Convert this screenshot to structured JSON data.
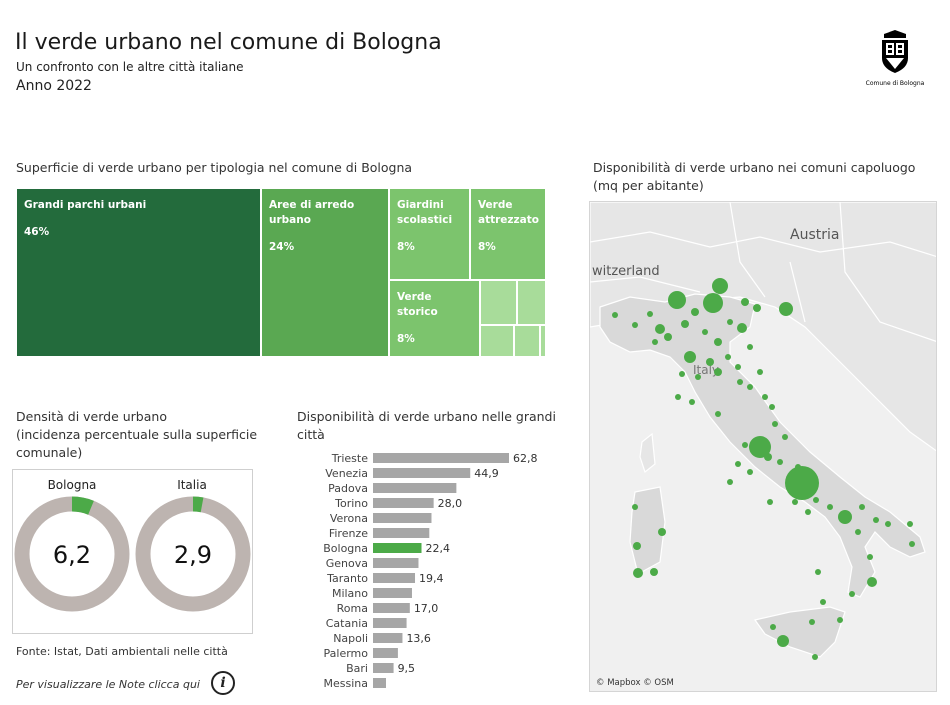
{
  "header": {
    "title": "Il verde urbano nel comune di Bologna",
    "subtitle": "Un confronto con le altre città italiane",
    "year": "Anno 2022",
    "logo_text": "Comune di Bologna"
  },
  "treemap": {
    "title": "Superficie di verde urbano per tipologia nel comune di Bologna",
    "cells": [
      {
        "label": "Grandi parchi urbani",
        "value": "46%",
        "color": "#236b3c"
      },
      {
        "label": "Aree di  arredo urbano",
        "value": "24%",
        "color": "#5aa852"
      },
      {
        "label": "Giardini scolastici",
        "value": "8%",
        "color": "#7cc46d"
      },
      {
        "label": "Verde attrezzato",
        "value": "8%",
        "color": "#7cc46d"
      },
      {
        "label": "Verde storico",
        "value": "8%",
        "color": "#7cc46d"
      }
    ]
  },
  "density": {
    "title_line1": "Densità di verde urbano",
    "title_line2": "(incidenza percentuale sulla superficie",
    "title_line3": "comunale)",
    "items": [
      {
        "name": "Bologna",
        "value": "6,2",
        "pct": 6.2
      },
      {
        "name": "Italia",
        "value": "2,9",
        "pct": 2.9
      }
    ],
    "ring_color": "#bdb4b0",
    "fill_color": "#4caa48"
  },
  "bars": {
    "title_line1": "Disponibilità di verde urbano nelle grandi",
    "title_line2": "città"
  },
  "map": {
    "title_line1": "Disponibilità di verde urbano nei comuni capoluogo",
    "title_line2": "(mq per abitante)",
    "label_austria": "Austria",
    "label_switzerland": "witzerland",
    "label_italy": "Italy",
    "credit": "© Mapbox © OSM",
    "dot_color": "#4caa48"
  },
  "footer": {
    "source": "Fonte: Istat, Dati ambientali nelle città",
    "note": "Per visualizzare le Note clicca qui"
  },
  "chart_data": [
    {
      "type": "bar",
      "orientation": "horizontal",
      "categories": [
        "Trieste",
        "Venezia",
        "Padova",
        "Torino",
        "Verona",
        "Firenze",
        "Bologna",
        "Genova",
        "Taranto",
        "Milano",
        "Roma",
        "Catania",
        "Napoli",
        "Palermo",
        "Bari",
        "Messina"
      ],
      "values": [
        62.8,
        44.9,
        38.5,
        28.0,
        27.0,
        26.0,
        22.4,
        21.0,
        19.4,
        18.0,
        17.0,
        15.5,
        13.6,
        11.5,
        9.5,
        6.0
      ],
      "labels": [
        "62,8",
        "44,9",
        "",
        "28,0",
        "",
        "",
        "22,4",
        "",
        "19,4",
        "",
        "17,0",
        "",
        "13,6",
        "",
        "9,5",
        ""
      ],
      "highlight": "Bologna",
      "bar_color": "#a6a6a6",
      "highlight_color": "#4caa48"
    },
    {
      "type": "treemap",
      "categories": [
        "Grandi parchi urbani",
        "Aree di  arredo urbano",
        "Giardini scolastici",
        "Verde attrezzato",
        "Verde storico"
      ],
      "values": [
        46,
        24,
        8,
        8,
        8
      ]
    }
  ]
}
